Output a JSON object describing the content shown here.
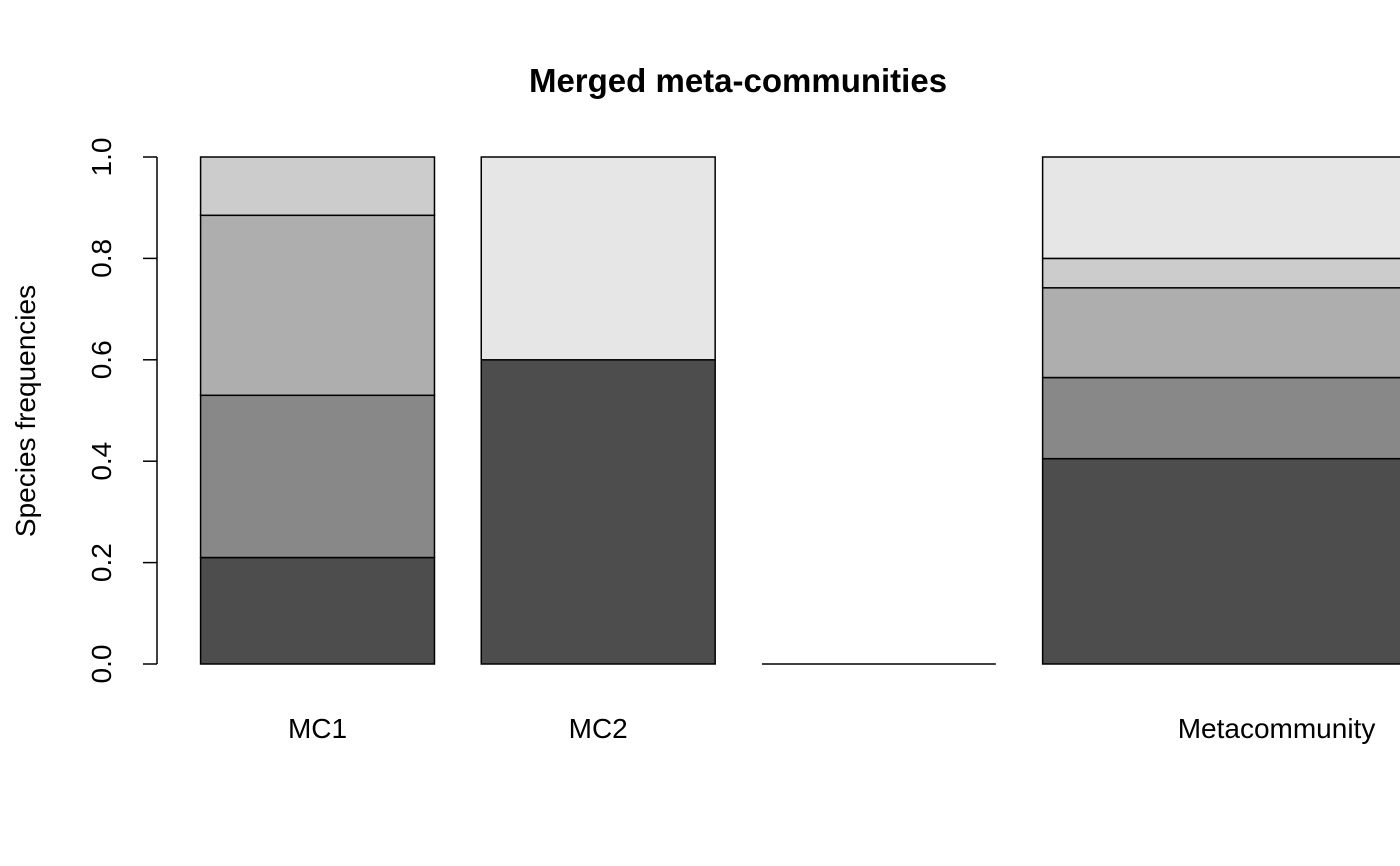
{
  "chart_data": {
    "type": "bar",
    "stacked": true,
    "title": "Merged meta-communities",
    "xlabel": "",
    "ylabel": "Species frequencies",
    "ylim": [
      0,
      1
    ],
    "yticks": [
      "0.0",
      "0.2",
      "0.4",
      "0.6",
      "0.8",
      "1.0"
    ],
    "categories": [
      "MC1",
      "MC2",
      "",
      "Metacommunity"
    ],
    "bar_widths": [
      1,
      1,
      1,
      2
    ],
    "bar_space": 0.2,
    "grid": false,
    "legend": "none",
    "segment_colors": [
      "#4d4d4d",
      "#888888",
      "#aeaeae",
      "#cccccc",
      "#e6e6e6"
    ],
    "series": [
      {
        "values": [
          0.21,
          0.6,
          0,
          0.405
        ]
      },
      {
        "values": [
          0.32,
          0,
          0,
          0.16
        ]
      },
      {
        "values": [
          0.355,
          0,
          0,
          0.177
        ]
      },
      {
        "values": [
          0.115,
          0,
          0,
          0.058
        ]
      },
      {
        "values": [
          0,
          0.4,
          0,
          0.2
        ]
      }
    ]
  }
}
